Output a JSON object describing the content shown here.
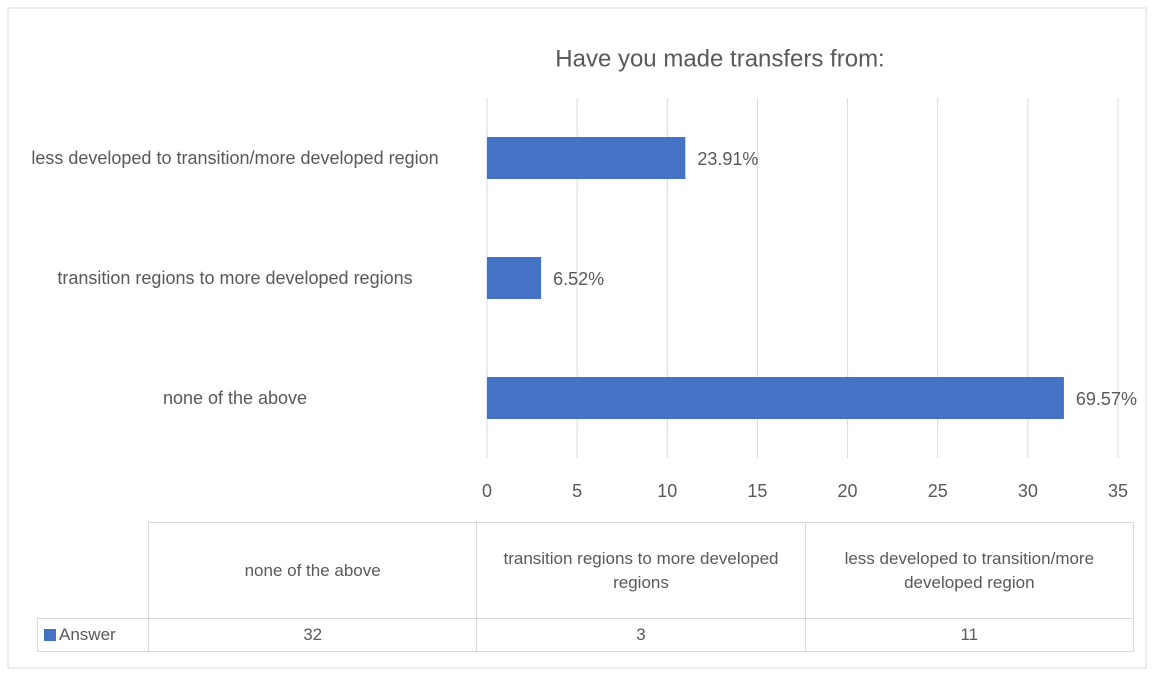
{
  "chart_data": {
    "type": "bar",
    "orientation": "horizontal",
    "title": "Have you made transfers from:",
    "categories": [
      "none of the above",
      "transition regions to more developed regions",
      "less developed to transition/more developed region"
    ],
    "series": [
      {
        "name": "Answer",
        "color": "#4472c4",
        "values": [
          32,
          3,
          11
        ],
        "value_labels": [
          "69.57%",
          "6.52%",
          "23.91%"
        ]
      }
    ],
    "xlim": [
      0,
      35
    ],
    "xticks": [
      0,
      5,
      10,
      15,
      20,
      25,
      30,
      35
    ],
    "grid": true,
    "data_table": true
  }
}
